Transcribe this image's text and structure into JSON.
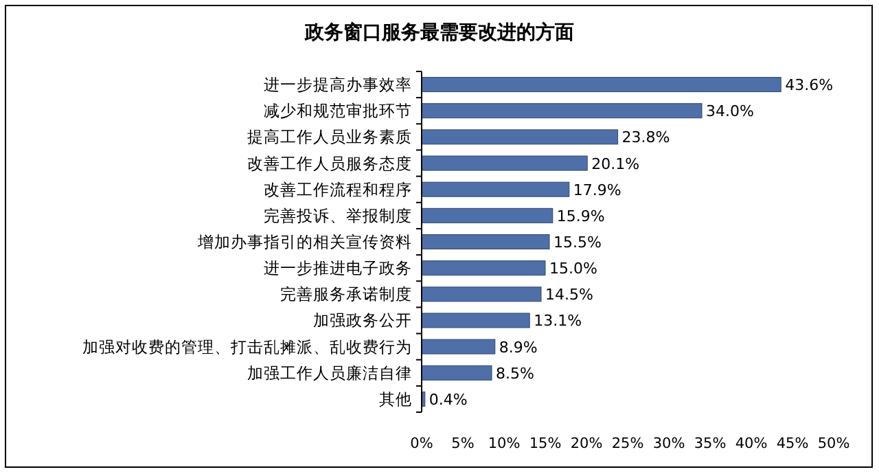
{
  "chart_data": {
    "type": "bar",
    "orientation": "horizontal",
    "title": "政务窗口服务最需要改进的方面",
    "categories": [
      "进一步提高办事效率",
      "减少和规范审批环节",
      "提高工作人员业务素质",
      "改善工作人员服务态度",
      "改善工作流程和程序",
      "完善投诉、举报制度",
      "增加办事指引的相关宣传资料",
      "进一步推进电子政务",
      "完善服务承诺制度",
      "加强政务公开",
      "加强对收费的管理、打击乱摊派、乱收费行为",
      "加强工作人员廉洁自律",
      "其他"
    ],
    "values": [
      43.6,
      34.0,
      23.8,
      20.1,
      17.9,
      15.9,
      15.5,
      15.0,
      14.5,
      13.1,
      8.9,
      8.5,
      0.4
    ],
    "value_labels": [
      "43.6%",
      "34.0%",
      "23.8%",
      "20.1%",
      "17.9%",
      "15.9%",
      "15.5%",
      "15.0%",
      "14.5%",
      "13.1%",
      "8.9%",
      "8.5%",
      "0.4%"
    ],
    "color": "#4f6fa8",
    "xlim": [
      0,
      50
    ],
    "xticks": [
      {
        "value": 0,
        "label": "0%"
      },
      {
        "value": 5,
        "label": "5%"
      },
      {
        "value": 10,
        "label": "10%"
      },
      {
        "value": 15,
        "label": "15%"
      },
      {
        "value": 20,
        "label": "20%"
      },
      {
        "value": 25,
        "label": "25%"
      },
      {
        "value": 30,
        "label": "30%"
      },
      {
        "value": 35,
        "label": "35%"
      },
      {
        "value": 40,
        "label": "40%"
      },
      {
        "value": 45,
        "label": "45%"
      },
      {
        "value": 50,
        "label": "50%"
      }
    ],
    "grid": false
  }
}
